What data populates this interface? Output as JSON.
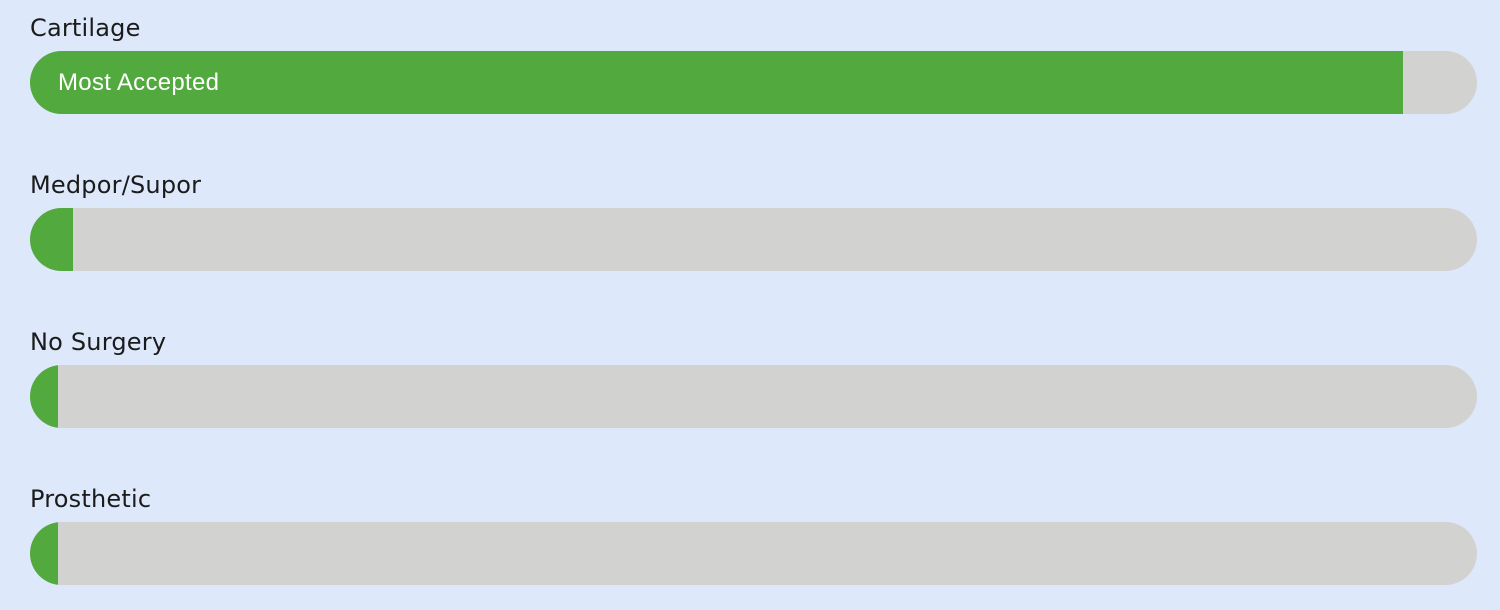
{
  "colors": {
    "background": "#dde8fa",
    "track": "#d2d2d0",
    "fill": "#52aa3e",
    "label_text": "#1b1b1b",
    "bar_text": "#ffffff"
  },
  "chart_data": {
    "type": "bar",
    "orientation": "horizontal",
    "title": "",
    "categories": [
      "Cartilage",
      "Medpor/Supor",
      "No Surgery",
      "Prosthetic"
    ],
    "values": [
      95,
      3,
      1,
      1
    ],
    "value_unit": "percent_of_bar_filled_estimated",
    "annotations": [
      "Most Accepted",
      "",
      "",
      ""
    ],
    "xlim": [
      0,
      100
    ],
    "grid": false,
    "legend": false
  },
  "rows": [
    {
      "label": "Cartilage",
      "fill_percent": 94.9,
      "annotation": "Most Accepted"
    },
    {
      "label": "Medpor/Supor",
      "fill_percent": 3.0,
      "annotation": ""
    },
    {
      "label": "No Surgery",
      "fill_percent": 1.1,
      "annotation": ""
    },
    {
      "label": "Prosthetic",
      "fill_percent": 1.1,
      "annotation": ""
    }
  ]
}
